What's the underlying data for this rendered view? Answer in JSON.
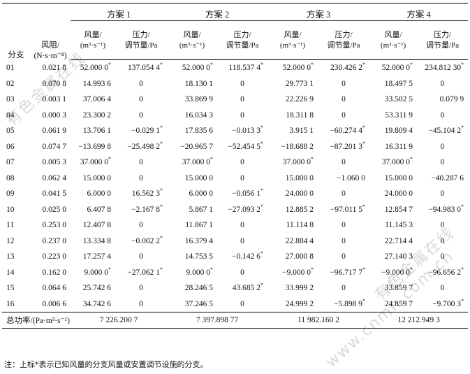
{
  "header": {
    "branch": "分支",
    "resistance_line1": "风阻/",
    "resistance_line2": "(N·s·m⁻⁸)",
    "plans": [
      "方案 1",
      "方案 2",
      "方案 3",
      "方案 4"
    ],
    "flow_line1": "风量/",
    "flow_line2": "(m³·s⁻¹)",
    "pressure_line1": "压力/",
    "pressure_line2": "调节量/Pa"
  },
  "rows": [
    {
      "branch": "01",
      "r": "0.021 8",
      "q1": "52.000 0",
      "q1s": "*",
      "p1": "137.054 4",
      "p1s": "*",
      "q2": "52.000 0",
      "q2s": "*",
      "p2": "118.537 4",
      "p2s": "*",
      "q3": "52.000 0",
      "q3s": "*",
      "p3": "230.426 2",
      "p3s": "*",
      "q4": "52.000 0",
      "q4s": "*",
      "p4": "234.812 30",
      "p4s": "*"
    },
    {
      "branch": "02",
      "r": "0.070 8",
      "q1": "14.993 6",
      "q1s": "",
      "p1": "0",
      "p1s": "",
      "q2": "18.130 1",
      "q2s": "",
      "p2": "0",
      "p2s": "",
      "q3": "29.773 1",
      "q3s": "",
      "p3": "0",
      "p3s": "",
      "q4": "18.497 5",
      "q4s": "",
      "p4": "0",
      "p4s": ""
    },
    {
      "branch": "03",
      "r": "0.003 1",
      "q1": "37.006 4",
      "q1s": "",
      "p1": "0",
      "p1s": "",
      "q2": "33.869 9",
      "q2s": "",
      "p2": "0",
      "p2s": "",
      "q3": "22.226 9",
      "q3s": "",
      "p3": "0",
      "p3s": "",
      "q4": "33.502 5",
      "q4s": "",
      "p4": "0.079 9",
      "p4s": ""
    },
    {
      "branch": "04",
      "r": "0.000 3",
      "q1": "23.300 2",
      "q1s": "",
      "p1": "0",
      "p1s": "",
      "q2": "16.034 3",
      "q2s": "",
      "p2": "0",
      "p2s": "",
      "q3": "18.311 8",
      "q3s": "",
      "p3": "0",
      "p3s": "",
      "q4": "53.311 9",
      "q4s": "",
      "p4": "0",
      "p4s": ""
    },
    {
      "branch": "05",
      "r": "0.061 9",
      "q1": "13.706 1",
      "q1s": "",
      "p1": "−0.029 1",
      "p1s": "*",
      "q2": "17.835 6",
      "q2s": "",
      "p2": "−0.013 3",
      "p2s": "*",
      "q3": "3.915 1",
      "q3s": "",
      "p3": "−60.274 4",
      "p3s": "*",
      "q4": "19.809 4",
      "q4s": "",
      "p4": "−45.104 2",
      "p4s": "*"
    },
    {
      "branch": "06",
      "r": "0.074 7",
      "q1": "−13.699 8",
      "q1s": "",
      "p1": "−25.498 2",
      "p1s": "*",
      "q2": "−20.965 7",
      "q2s": "",
      "p2": "−52.454 5",
      "p2s": "*",
      "q3": "−18.688 2",
      "q3s": "",
      "p3": "−87.201 3",
      "p3s": "*",
      "q4": "16.311 9",
      "q4s": "",
      "p4": "0",
      "p4s": ""
    },
    {
      "branch": "07",
      "r": "0.005 3",
      "q1": "37.000 0",
      "q1s": "*",
      "p1": "0",
      "p1s": "",
      "q2": "37.000 0",
      "q2s": "*",
      "p2": "0",
      "p2s": "",
      "q3": "37.000 0",
      "q3s": "*",
      "p3": "0",
      "p3s": "",
      "q4": "37.000 0",
      "q4s": "*",
      "p4": "0",
      "p4s": ""
    },
    {
      "branch": "08",
      "r": "0.062 4",
      "q1": "15.000 0",
      "q1s": "",
      "p1": "0",
      "p1s": "",
      "q2": "15.000 0",
      "q2s": "",
      "p2": "0",
      "p2s": "",
      "q3": "15.000 0",
      "q3s": "",
      "p3": "−1.060 0",
      "p3s": "",
      "q4": "15.000 0",
      "q4s": "",
      "p4": "−40.287 6",
      "p4s": ""
    },
    {
      "branch": "09",
      "r": "0.041 5",
      "q1": "6.000 0",
      "q1s": "",
      "p1": "16.562 3",
      "p1s": "*",
      "q2": "6.000 0",
      "q2s": "",
      "p2": "−0.056 1",
      "p2s": "*",
      "q3": "24.000 0",
      "q3s": "",
      "p3": "0",
      "p3s": "",
      "q4": "24.000 0",
      "q4s": "",
      "p4": "0",
      "p4s": ""
    },
    {
      "branch": "10",
      "r": "0.025 0",
      "q1": "6.407 8",
      "q1s": "",
      "p1": "−2.167 8",
      "p1s": "*",
      "q2": "5.867 1",
      "q2s": "",
      "p2": "−27.093 2",
      "p2s": "*",
      "q3": "12.885 2",
      "q3s": "",
      "p3": "−97.011 5",
      "p3s": "*",
      "q4": "12.854 7",
      "q4s": "",
      "p4": "−94.983 0",
      "p4s": "*"
    },
    {
      "branch": "11",
      "r": "0.253 0",
      "q1": "12.407 8",
      "q1s": "",
      "p1": "0",
      "p1s": "",
      "q2": "11.867 1",
      "q2s": "",
      "p2": "0",
      "p2s": "",
      "q3": "11.114 8",
      "q3s": "",
      "p3": "0",
      "p3s": "",
      "q4": "11.145 3",
      "q4s": "",
      "p4": "0",
      "p4s": ""
    },
    {
      "branch": "12",
      "r": "0.237 0",
      "q1": "13.334 8",
      "q1s": "",
      "p1": "−0.002 2",
      "p1s": "*",
      "q2": "16.379 4",
      "q2s": "",
      "p2": "0",
      "p2s": "",
      "q3": "22.884 4",
      "q3s": "",
      "p3": "0",
      "p3s": "",
      "q4": "22.714 4",
      "q4s": "",
      "p4": "0",
      "p4s": ""
    },
    {
      "branch": "13",
      "r": "0.223 0",
      "q1": "17.257 4",
      "q1s": "",
      "p1": "0",
      "p1s": "",
      "q2": "14.753 5",
      "q2s": "",
      "p2": "−0.142 6",
      "p2s": "*",
      "q3": "27.000 8",
      "q3s": "",
      "p3": "0",
      "p3s": "",
      "q4": "27.140 3",
      "q4s": "",
      "p4": "0",
      "p4s": ""
    },
    {
      "branch": "14",
      "r": "0.162 0",
      "q1": "9.000 0",
      "q1s": "*",
      "p1": "−27.062 1",
      "p1s": "*",
      "q2": "9.000 0",
      "q2s": "*",
      "p2": "0",
      "p2s": "",
      "q3": "−9.000 0",
      "q3s": "*",
      "p3": "−96.717 7",
      "p3s": "*",
      "q4": "−9.000 0",
      "q4s": "*",
      "p4": "−96.656 2",
      "p4s": "*"
    },
    {
      "branch": "15",
      "r": "0.064 6",
      "q1": "25.742 6",
      "q1s": "",
      "p1": "0",
      "p1s": "",
      "q2": "28.246 5",
      "q2s": "",
      "p2": "43.685 2",
      "p2s": "*",
      "q3": "33.999 2",
      "q3s": "",
      "p3": "0",
      "p3s": "",
      "q4": "33.859 7",
      "q4s": "",
      "p4": "0",
      "p4s": ""
    },
    {
      "branch": "16",
      "r": "0.006 6",
      "q1": "34.742 6",
      "q1s": "",
      "p1": "0",
      "p1s": "",
      "q2": "37.246 5",
      "q2s": "",
      "p2": "0",
      "p2s": "",
      "q3": "24.999 2",
      "q3s": "",
      "p3": "−5.898 9",
      "p3s": "*",
      "q4": "24.859 7",
      "q4s": "",
      "p4": "−9.700 3",
      "p4s": "*"
    }
  ],
  "total": {
    "label": "总功率/(Pa·m³·s⁻¹)",
    "values": [
      "7 226.200 7",
      "7 397.898 77",
      "11 982.160 2",
      "12 212.949 3"
    ]
  },
  "note": "注：上标*表示已知风量的分支风量或安置调节设施的分支。",
  "watermarks": [
    "有色金属在线",
    "www.cnmn.com.cn",
    "www.cnmn.com.cn"
  ]
}
